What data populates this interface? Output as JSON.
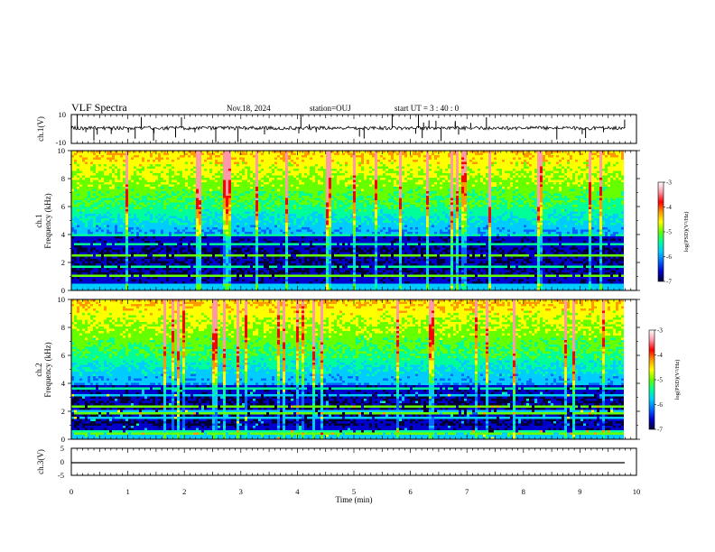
{
  "header": {
    "title": "VLF Spectra",
    "date": "Nov.18, 2024",
    "station": "station=OUJ",
    "start_ut": "start  UT  =   3  : 40 : 0"
  },
  "colors": {
    "spectrogram_scale": [
      "#000033",
      "#0000cc",
      "#0066ff",
      "#00ccff",
      "#00ff99",
      "#66ff00",
      "#ffff00",
      "#ff9900",
      "#ff0000",
      "#ff99aa",
      "#ffffff"
    ],
    "trace": "#000000"
  },
  "chart_data": [
    {
      "type": "line",
      "name": "ch1-waveform",
      "ylabel": "ch.1(V)",
      "ylim": [
        -10,
        10
      ],
      "ytick_labels": [
        "10",
        "-10"
      ],
      "xlim": [
        0,
        10
      ],
      "baseline": 0,
      "description_of_values": "noisy waveform near 0 V with sharp spikes"
    },
    {
      "type": "heatmap",
      "name": "ch1-spectrogram",
      "ylabel": "ch.1\nFrequency (kHz)",
      "ylabel_line1": "ch.1",
      "ylabel_line2": "Frequency (kHz)",
      "ylim": [
        0,
        10
      ],
      "ytick_labels": [
        "0",
        "2",
        "4",
        "6",
        "8",
        "10"
      ],
      "xlim": [
        0,
        10
      ],
      "colorbar": {
        "label": "log(PSD)(V²/Hz)",
        "range": [
          -7,
          -3
        ],
        "tick_labels": [
          "-3",
          "-4",
          "-5",
          "-6",
          "-7"
        ]
      }
    },
    {
      "type": "heatmap",
      "name": "ch2-spectrogram",
      "ylabel": "ch.2\nFrequency (kHz)",
      "ylabel_line1": "ch.2",
      "ylabel_line2": "Frequency (kHz)",
      "ylim": [
        0,
        10
      ],
      "ytick_labels": [
        "0",
        "2",
        "4",
        "6",
        "8",
        "10"
      ],
      "xlim": [
        0,
        10
      ],
      "colorbar": {
        "label": "log(PSD)(V²/Hz)",
        "range": [
          -7,
          -3
        ],
        "tick_labels": [
          "-3",
          "-4",
          "-5",
          "-6",
          "-7"
        ]
      }
    },
    {
      "type": "line",
      "name": "ch3-waveform",
      "ylabel": "ch.3(V)",
      "ylim": [
        -5,
        5
      ],
      "ytick_labels": [
        "5",
        "0",
        "-5"
      ],
      "xlim": [
        0,
        10
      ],
      "x": [
        0,
        9.8
      ],
      "y": [
        -1.5,
        -1.5
      ]
    }
  ],
  "xaxis": {
    "label": "Time (min)",
    "tick_labels": [
      "0",
      "1",
      "2",
      "3",
      "4",
      "5",
      "6",
      "7",
      "8",
      "9",
      "10"
    ]
  }
}
